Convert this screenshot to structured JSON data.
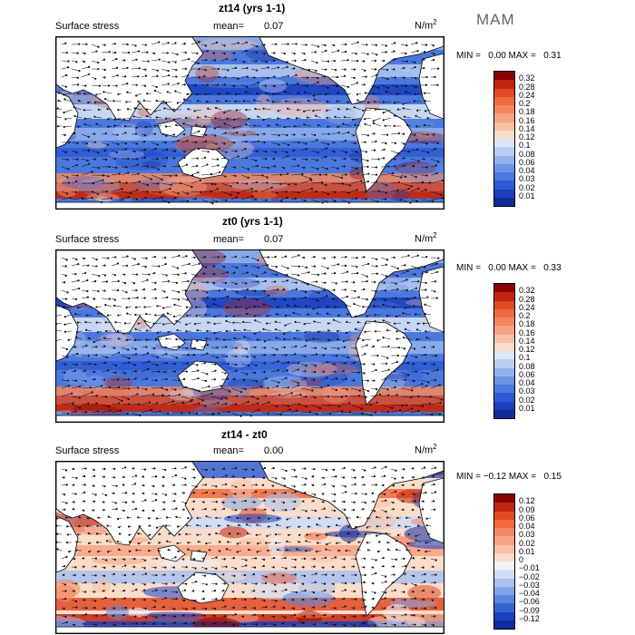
{
  "season": "MAM",
  "panels": [
    {
      "title": "zt14 (yrs 1-1)",
      "subtitle": "Surface stress",
      "mean_label": "mean=",
      "mean_value": "0.07",
      "units": "N/m",
      "units_exp": "2",
      "min_label": "MIN =",
      "min_value": "0.00",
      "max_label": "MAX =",
      "max_value": "0.31",
      "levels": [
        "0.32",
        "0.28",
        "0.24",
        "0.2",
        "0.18",
        "0.16",
        "0.14",
        "0.12",
        "0.1",
        "0.08",
        "0.06",
        "0.04",
        "0.03",
        "0.02",
        "0.01"
      ],
      "colors": [
        "#8b0000",
        "#c0250f",
        "#e04a25",
        "#f06a3e",
        "#f48760",
        "#f7a383",
        "#f9c0a6",
        "#fbdcc8",
        "#dde6f8",
        "#b9cdf2",
        "#91b1ec",
        "#6a95e6",
        "#4a78de",
        "#2d5ad4",
        "#1a3fbf",
        "#102a9a"
      ]
    },
    {
      "title": "zt0 (yrs 1-1)",
      "subtitle": "Surface stress",
      "mean_label": "mean=",
      "mean_value": "0.07",
      "units": "N/m",
      "units_exp": "2",
      "min_label": "MIN =",
      "min_value": "0.00",
      "max_label": "MAX =",
      "max_value": "0.33",
      "levels": [
        "0.32",
        "0.28",
        "0.24",
        "0.2",
        "0.18",
        "0.16",
        "0.14",
        "0.12",
        "0.1",
        "0.08",
        "0.06",
        "0.04",
        "0.03",
        "0.02",
        "0.01"
      ],
      "colors": [
        "#8b0000",
        "#c0250f",
        "#e04a25",
        "#f06a3e",
        "#f48760",
        "#f7a383",
        "#f9c0a6",
        "#fbdcc8",
        "#dde6f8",
        "#b9cdf2",
        "#91b1ec",
        "#6a95e6",
        "#4a78de",
        "#2d5ad4",
        "#1a3fbf",
        "#102a9a"
      ]
    },
    {
      "title": "zt14 - zt0",
      "subtitle": "Surface stress",
      "mean_label": "mean=",
      "mean_value": "0.00",
      "units": "N/m",
      "units_exp": "2",
      "min_label": "MIN =",
      "min_value": "−0.12",
      "max_label": "MAX =",
      "max_value": "0.15",
      "levels": [
        "0.12",
        "0.09",
        "0.06",
        "0.04",
        "0.03",
        "0.02",
        "0.01",
        "0",
        "−0.01",
        "−0.02",
        "−0.03",
        "−0.04",
        "−0.06",
        "−0.09",
        "−0.12"
      ],
      "colors": [
        "#8b0000",
        "#c0250f",
        "#e04a25",
        "#f06a3e",
        "#f48760",
        "#f7a383",
        "#f9c0a6",
        "#fbdcc8",
        "#eef3fc",
        "#cfdcf6",
        "#a9c1ee",
        "#82a4e6",
        "#5b86de",
        "#3563d2",
        "#1a3fbf",
        "#102a9a"
      ]
    }
  ]
}
